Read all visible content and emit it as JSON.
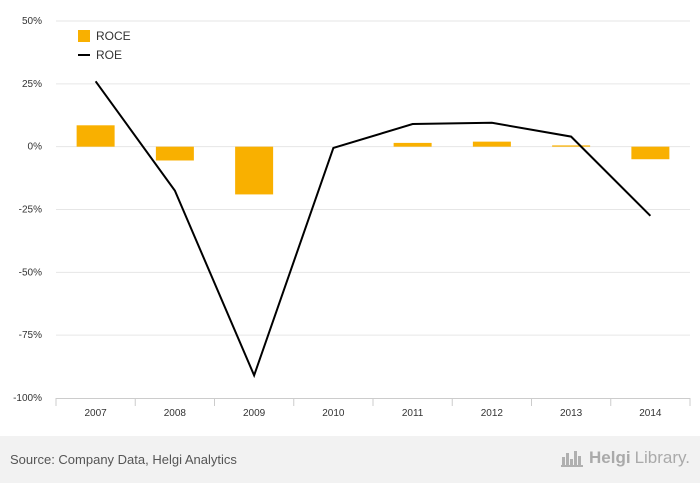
{
  "chart_data": {
    "type": "bar",
    "categories": [
      "2007",
      "2008",
      "2009",
      "2010",
      "2011",
      "2012",
      "2013",
      "2014"
    ],
    "series": [
      {
        "name": "ROCE",
        "type": "bar",
        "color": "#f9b000",
        "values": [
          8.5,
          -5.5,
          -19.0,
          0.0,
          1.5,
          2.0,
          0.5,
          -5.0
        ]
      },
      {
        "name": "ROE",
        "type": "line",
        "color": "#000000",
        "values": [
          26.0,
          -17.5,
          -91.0,
          -0.5,
          9.0,
          9.5,
          4.0,
          -27.5
        ]
      }
    ],
    "yticks": [
      "50%",
      "25%",
      "0%",
      "-25%",
      "-50%",
      "-75%",
      "-100%"
    ],
    "ylim": [
      -100,
      50
    ],
    "grid": true,
    "legend": "top-left"
  },
  "footer": {
    "source": "Source: Company Data, Helgi Analytics",
    "brand_bold": "Helgi",
    "brand_light": "Library."
  },
  "colors": {
    "gridline": "#e6e6e6",
    "footer_bg": "#f2f2f2"
  },
  "icons": {
    "brand": "city-skyline-icon"
  }
}
